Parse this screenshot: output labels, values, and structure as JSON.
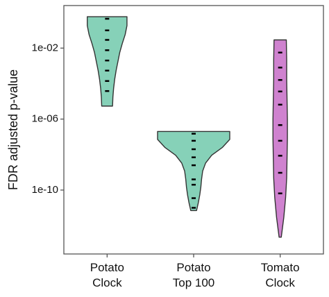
{
  "chart_data": {
    "type": "violin",
    "y_label": "FDR adjusted p-value",
    "log_y": true,
    "ylim": [
      2.5e-14,
      2.5
    ],
    "yticks": [
      {
        "value": 0.01,
        "label": "1e-02"
      },
      {
        "value": 1e-06,
        "label": "1e-06"
      },
      {
        "value": 1e-10,
        "label": "1e-10"
      }
    ],
    "categories": [
      "Potato Clock",
      "Potato Top 100",
      "Tomato Clock"
    ],
    "series": [
      {
        "name": "Potato Clock",
        "color": "#86d1b8",
        "range": [
          5.4e-06,
          0.59
        ],
        "density": [
          0.55,
          0.55,
          0.5,
          0.42,
          0.35,
          0.3,
          0.25,
          0.21,
          0.18,
          0.16,
          0.15
        ],
        "values": [
          0.45,
          0.1,
          0.029,
          0.0076,
          0.002,
          0.00054,
          0.00014,
          3.8e-05
        ]
      },
      {
        "name": "Potato Top 100",
        "color": "#86d1b8",
        "range": [
          7e-12,
          2e-07
        ],
        "density": [
          1.0,
          1.0,
          0.8,
          0.5,
          0.33,
          0.25,
          0.22,
          0.2,
          0.17,
          0.13,
          0.08
        ],
        "values": [
          1.5e-07,
          6e-08,
          2e-08,
          7e-09,
          2.5e-09,
          4e-10,
          2e-10,
          3.5e-11,
          1e-11
        ]
      },
      {
        "name": "Tomato Clock",
        "color": "#cf82cf",
        "range": [
          2.2e-13,
          0.029
        ],
        "density": [
          0.17,
          0.18,
          0.18,
          0.19,
          0.2,
          0.2,
          0.19,
          0.18,
          0.15,
          0.1,
          0.03
        ],
        "values": [
          0.0056,
          0.0008,
          0.00016,
          3.6e-05,
          6.5e-06,
          4.6e-07,
          6e-08,
          8.6e-09,
          9.4e-10,
          6.5e-11
        ]
      }
    ]
  }
}
